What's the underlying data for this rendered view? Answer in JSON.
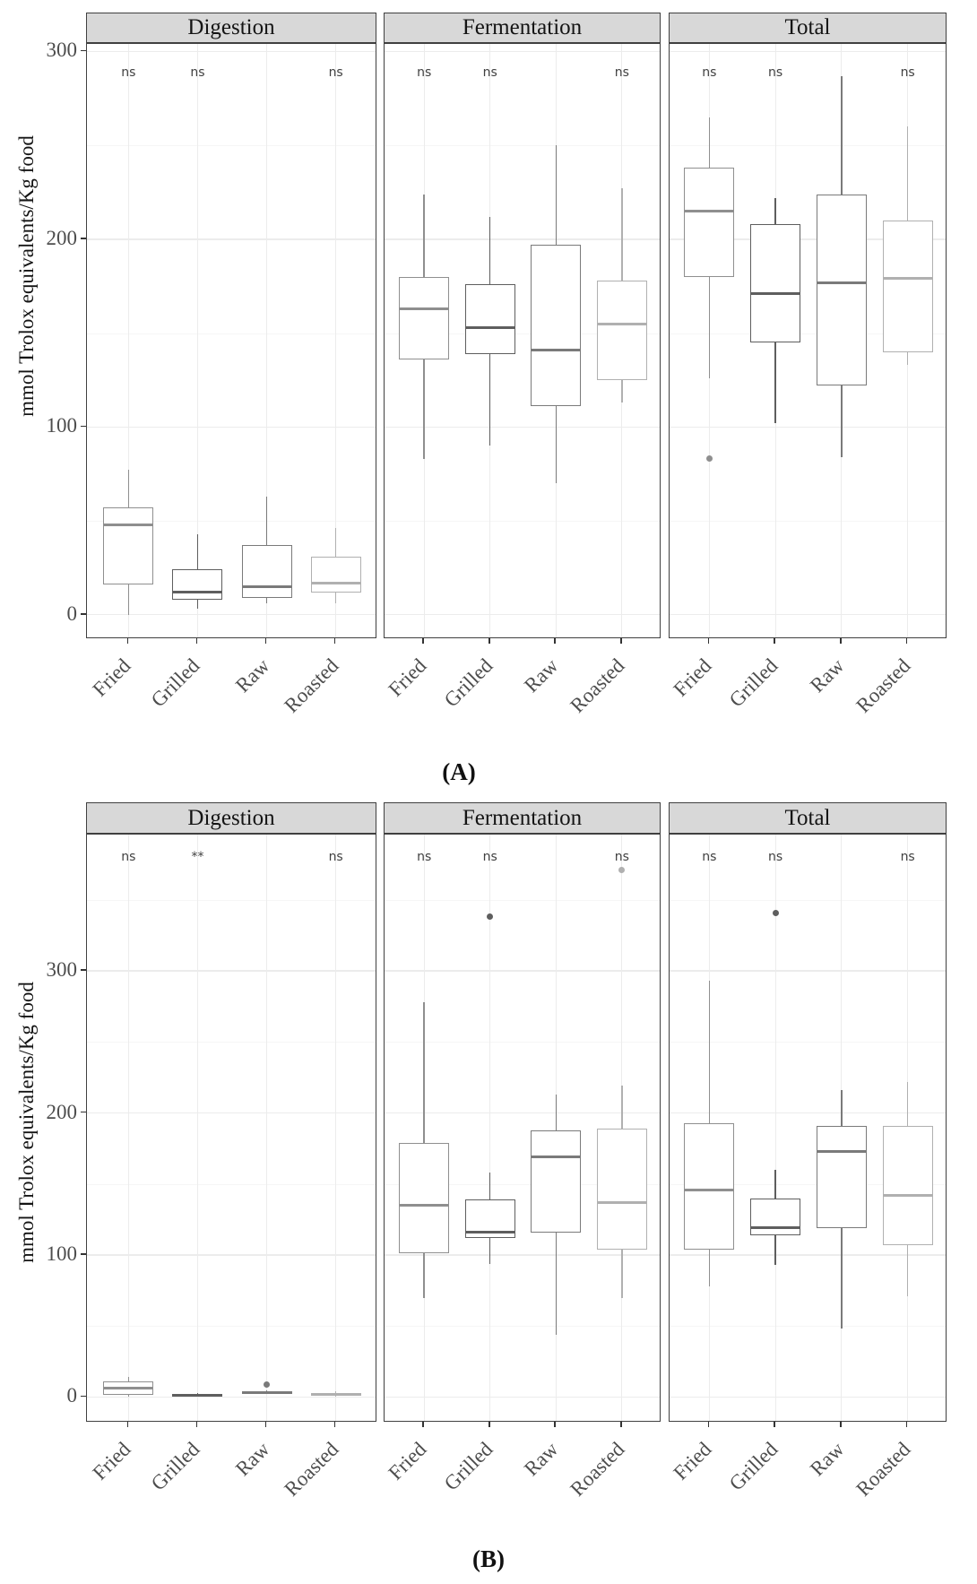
{
  "page": {
    "background": "#ffffff"
  },
  "categories": [
    "Fried",
    "Grilled",
    "Raw",
    "Roasted"
  ],
  "category_colors": {
    "Fried": "#8f8f8f",
    "Grilled": "#5e5e5e",
    "Raw": "#7a7a7a",
    "Roasted": "#b0b0b0"
  },
  "theme": {
    "panel_border": "#404040",
    "grid_major": "#ececec",
    "grid_minor": "#f6f6f6",
    "strip_bg": "#d8d8d8",
    "strip_text": "#141414",
    "axis_text": "#4d4d4d",
    "annotation_text": "#404040"
  },
  "chart_data": [
    {
      "id": "A",
      "type": "boxplot-facets",
      "caption": "(A)",
      "ylabel": "mmol Trolox equivalents/Kg food",
      "ylim": [
        -13,
        304
      ],
      "yticks": [
        0,
        100,
        200,
        300
      ],
      "yticks_minor": [
        50,
        150,
        250
      ],
      "grid": true,
      "annotation_y": 288,
      "facets": [
        {
          "label": "Digestion",
          "boxes": [
            {
              "category": "Fried",
              "low": 0,
              "q1": 16,
              "median": 48,
              "q3": 57,
              "high": 77,
              "sig": "ns",
              "outliers": []
            },
            {
              "category": "Grilled",
              "low": 3,
              "q1": 8,
              "median": 12,
              "q3": 24,
              "high": 43,
              "sig": "ns",
              "outliers": []
            },
            {
              "category": "Raw",
              "low": 6,
              "q1": 9,
              "median": 15,
              "q3": 37,
              "high": 63,
              "sig": null,
              "outliers": []
            },
            {
              "category": "Roasted",
              "low": 6,
              "q1": 12,
              "median": 17,
              "q3": 31,
              "high": 46,
              "sig": "ns",
              "outliers": []
            }
          ]
        },
        {
          "label": "Fermentation",
          "boxes": [
            {
              "category": "Fried",
              "low": 83,
              "q1": 136,
              "median": 163,
              "q3": 180,
              "high": 224,
              "sig": "ns",
              "outliers": []
            },
            {
              "category": "Grilled",
              "low": 90,
              "q1": 139,
              "median": 153,
              "q3": 176,
              "high": 212,
              "sig": "ns",
              "outliers": []
            },
            {
              "category": "Raw",
              "low": 70,
              "q1": 111,
              "median": 141,
              "q3": 197,
              "high": 250,
              "sig": null,
              "outliers": []
            },
            {
              "category": "Roasted",
              "low": 113,
              "q1": 125,
              "median": 155,
              "q3": 178,
              "high": 227,
              "sig": "ns",
              "outliers": []
            }
          ]
        },
        {
          "label": "Total",
          "boxes": [
            {
              "category": "Fried",
              "low": 126,
              "q1": 180,
              "median": 215,
              "q3": 238,
              "high": 265,
              "sig": "ns",
              "outliers": [
                83
              ]
            },
            {
              "category": "Grilled",
              "low": 102,
              "q1": 145,
              "median": 171,
              "q3": 208,
              "high": 222,
              "sig": "ns",
              "outliers": []
            },
            {
              "category": "Raw",
              "low": 84,
              "q1": 122,
              "median": 177,
              "q3": 224,
              "high": 287,
              "sig": null,
              "outliers": []
            },
            {
              "category": "Roasted",
              "low": 133,
              "q1": 140,
              "median": 179,
              "q3": 210,
              "high": 260,
              "sig": "ns",
              "outliers": []
            }
          ]
        }
      ]
    },
    {
      "id": "B",
      "type": "boxplot-facets",
      "caption": "(B)",
      "ylabel": "mmol Trolox equivalents/Kg food",
      "ylim": [
        -18,
        396
      ],
      "yticks": [
        0,
        100,
        200,
        300
      ],
      "yticks_minor": [
        50,
        150,
        250,
        350
      ],
      "grid": true,
      "annotation_y": 379,
      "facets": [
        {
          "label": "Digestion",
          "boxes": [
            {
              "category": "Fried",
              "low": 0,
              "q1": 1.5,
              "median": 6.5,
              "q3": 11,
              "high": 14,
              "sig": "ns",
              "outliers": []
            },
            {
              "category": "Grilled",
              "low": 0,
              "q1": 0.3,
              "median": 1,
              "q3": 2,
              "high": 3,
              "sig": "**",
              "outliers": []
            },
            {
              "category": "Raw",
              "low": 2,
              "q1": 2.5,
              "median": 3,
              "q3": 4,
              "high": 5,
              "sig": null,
              "outliers": [
                9
              ]
            },
            {
              "category": "Roasted",
              "low": 0.5,
              "q1": 1,
              "median": 2,
              "q3": 3,
              "high": 4,
              "sig": "ns",
              "outliers": []
            }
          ]
        },
        {
          "label": "Fermentation",
          "boxes": [
            {
              "category": "Fried",
              "low": 70,
              "q1": 101,
              "median": 135,
              "q3": 179,
              "high": 278,
              "sig": "ns",
              "outliers": []
            },
            {
              "category": "Grilled",
              "low": 94,
              "q1": 112,
              "median": 116,
              "q3": 139,
              "high": 158,
              "sig": "ns",
              "outliers": [
                338
              ]
            },
            {
              "category": "Raw",
              "low": 44,
              "q1": 116,
              "median": 169,
              "q3": 188,
              "high": 213,
              "sig": null,
              "outliers": []
            },
            {
              "category": "Roasted",
              "low": 70,
              "q1": 104,
              "median": 137,
              "q3": 189,
              "high": 219,
              "sig": "ns",
              "outliers": [
                371
              ]
            }
          ]
        },
        {
          "label": "Total",
          "boxes": [
            {
              "category": "Fried",
              "low": 78,
              "q1": 104,
              "median": 146,
              "q3": 193,
              "high": 293,
              "sig": "ns",
              "outliers": []
            },
            {
              "category": "Grilled",
              "low": 93,
              "q1": 114,
              "median": 119,
              "q3": 140,
              "high": 160,
              "sig": "ns",
              "outliers": [
                341
              ]
            },
            {
              "category": "Raw",
              "low": 48,
              "q1": 119,
              "median": 173,
              "q3": 191,
              "high": 216,
              "sig": null,
              "outliers": []
            },
            {
              "category": "Roasted",
              "low": 71,
              "q1": 107,
              "median": 142,
              "q3": 191,
              "high": 222,
              "sig": "ns",
              "outliers": []
            }
          ]
        }
      ]
    }
  ]
}
